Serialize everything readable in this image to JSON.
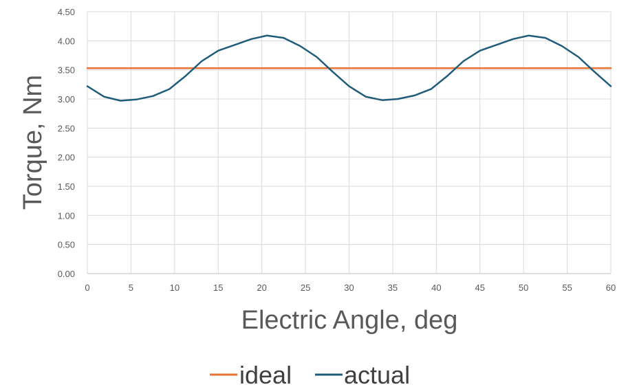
{
  "chart_data": {
    "type": "line",
    "title": "",
    "xlabel": "Electric Angle, deg",
    "ylabel": "Torque, Nm",
    "xlim": [
      0,
      60
    ],
    "ylim": [
      0,
      4.5
    ],
    "x_ticks": [
      "0",
      "5",
      "10",
      "15",
      "20",
      "25",
      "30",
      "35",
      "40",
      "45",
      "50",
      "55",
      "60"
    ],
    "y_ticks": [
      "0.00",
      "0.50",
      "1.00",
      "1.50",
      "2.00",
      "2.50",
      "3.00",
      "3.50",
      "4.00",
      "4.50"
    ],
    "grid": true,
    "legend_position": "bottom",
    "series": [
      {
        "name": "ideal",
        "color": "#E97132",
        "x": [
          0,
          60
        ],
        "y": [
          3.53,
          3.53
        ]
      },
      {
        "name": "actual",
        "color": "#1F5C7A",
        "x": [
          0,
          1.9,
          3.8,
          5.6,
          7.5,
          9.4,
          11.3,
          13.1,
          15.0,
          16.9,
          18.8,
          20.6,
          22.5,
          24.4,
          26.3,
          28.1,
          30.0,
          31.9,
          33.8,
          35.6,
          37.5,
          39.4,
          41.3,
          43.1,
          45.0,
          46.9,
          48.8,
          50.6,
          52.5,
          54.4,
          56.3,
          58.1,
          60.0
        ],
        "y": [
          3.22,
          3.04,
          2.97,
          2.99,
          3.05,
          3.17,
          3.4,
          3.65,
          3.83,
          3.93,
          4.03,
          4.09,
          4.05,
          3.91,
          3.72,
          3.47,
          3.22,
          3.04,
          2.98,
          3.0,
          3.06,
          3.17,
          3.4,
          3.65,
          3.83,
          3.93,
          4.03,
          4.09,
          4.05,
          3.91,
          3.72,
          3.47,
          3.22
        ]
      }
    ]
  }
}
